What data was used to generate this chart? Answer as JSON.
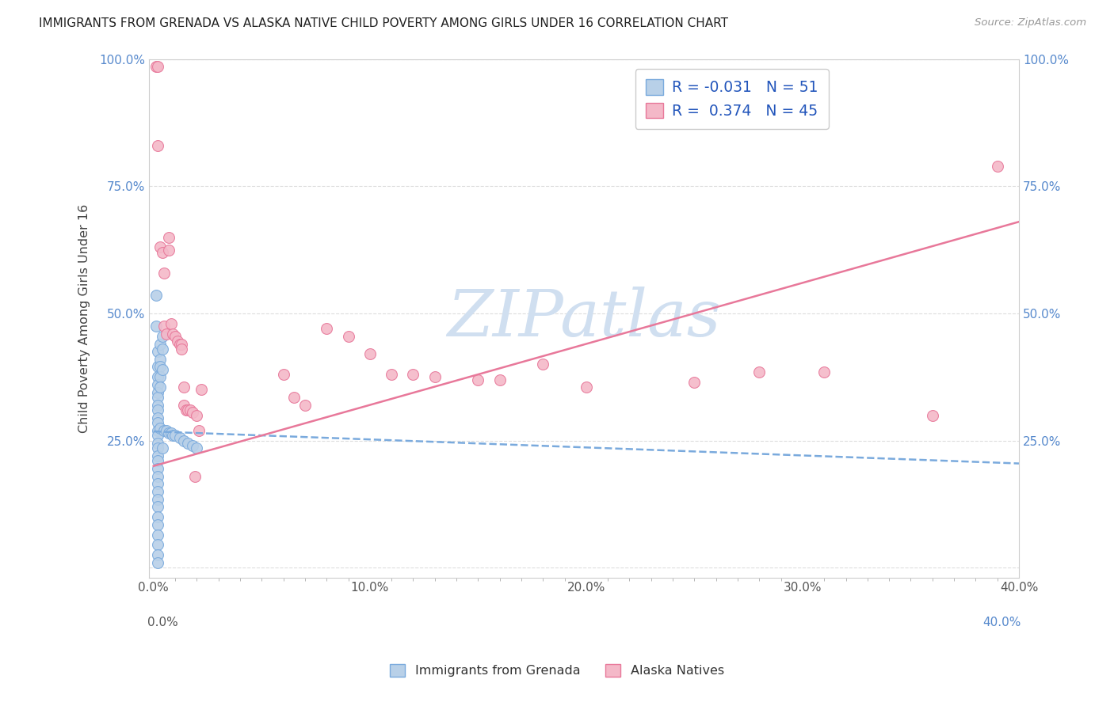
{
  "title": "IMMIGRANTS FROM GRENADA VS ALASKA NATIVE CHILD POVERTY AMONG GIRLS UNDER 16 CORRELATION CHART",
  "source": "Source: ZipAtlas.com",
  "ylabel": "Child Poverty Among Girls Under 16",
  "x_tick_labels": [
    "0.0%",
    "",
    "",
    "",
    "",
    "",
    "",
    "",
    "",
    "",
    "10.0%",
    "",
    "",
    "",
    "",
    "",
    "",
    "",
    "",
    "",
    "20.0%",
    "",
    "",
    "",
    "",
    "",
    "",
    "",
    "",
    "",
    "30.0%",
    "",
    "",
    "",
    "",
    "",
    "",
    "",
    "",
    "",
    "40.0%"
  ],
  "x_tick_values_major": [
    0.0,
    0.1,
    0.2,
    0.3,
    0.4
  ],
  "x_tick_labels_major": [
    "0.0%",
    "10.0%",
    "20.0%",
    "30.0%",
    "40.0%"
  ],
  "y_tick_values": [
    0.0,
    0.25,
    0.5,
    0.75,
    1.0
  ],
  "xlim": [
    -0.002,
    0.4
  ],
  "ylim": [
    -0.02,
    1.0
  ],
  "legend_R1": "-0.031",
  "legend_N1": "51",
  "legend_R2": "0.374",
  "legend_N2": "45",
  "series1_label": "Immigrants from Grenada",
  "series2_label": "Alaska Natives",
  "series1_color": "#b8d0e8",
  "series1_edge": "#7aaadd",
  "series2_color": "#f4b8c8",
  "series2_edge": "#e8789a",
  "trend1_color": "#7aaadd",
  "trend2_color": "#e8789a",
  "watermark": "ZIPatlas",
  "watermark_color": "#d0dff0",
  "blue_scatter": [
    [
      0.001,
      0.535
    ],
    [
      0.001,
      0.475
    ],
    [
      0.002,
      0.425
    ],
    [
      0.002,
      0.395
    ],
    [
      0.002,
      0.375
    ],
    [
      0.002,
      0.36
    ],
    [
      0.002,
      0.345
    ],
    [
      0.002,
      0.335
    ],
    [
      0.002,
      0.32
    ],
    [
      0.002,
      0.31
    ],
    [
      0.002,
      0.295
    ],
    [
      0.002,
      0.285
    ],
    [
      0.002,
      0.27
    ],
    [
      0.002,
      0.26
    ],
    [
      0.002,
      0.245
    ],
    [
      0.002,
      0.235
    ],
    [
      0.002,
      0.22
    ],
    [
      0.002,
      0.21
    ],
    [
      0.002,
      0.195
    ],
    [
      0.002,
      0.18
    ],
    [
      0.002,
      0.165
    ],
    [
      0.002,
      0.15
    ],
    [
      0.002,
      0.135
    ],
    [
      0.002,
      0.12
    ],
    [
      0.002,
      0.1
    ],
    [
      0.002,
      0.085
    ],
    [
      0.002,
      0.065
    ],
    [
      0.002,
      0.045
    ],
    [
      0.002,
      0.025
    ],
    [
      0.002,
      0.01
    ],
    [
      0.003,
      0.44
    ],
    [
      0.003,
      0.41
    ],
    [
      0.003,
      0.395
    ],
    [
      0.003,
      0.375
    ],
    [
      0.003,
      0.355
    ],
    [
      0.003,
      0.275
    ],
    [
      0.004,
      0.455
    ],
    [
      0.004,
      0.43
    ],
    [
      0.004,
      0.39
    ],
    [
      0.004,
      0.235
    ],
    [
      0.005,
      0.27
    ],
    [
      0.006,
      0.27
    ],
    [
      0.007,
      0.265
    ],
    [
      0.008,
      0.265
    ],
    [
      0.009,
      0.26
    ],
    [
      0.01,
      0.26
    ],
    [
      0.012,
      0.255
    ],
    [
      0.014,
      0.25
    ],
    [
      0.016,
      0.245
    ],
    [
      0.018,
      0.24
    ],
    [
      0.02,
      0.235
    ]
  ],
  "pink_scatter": [
    [
      0.001,
      0.985
    ],
    [
      0.002,
      0.985
    ],
    [
      0.002,
      0.83
    ],
    [
      0.003,
      0.63
    ],
    [
      0.004,
      0.62
    ],
    [
      0.005,
      0.58
    ],
    [
      0.005,
      0.475
    ],
    [
      0.006,
      0.46
    ],
    [
      0.007,
      0.65
    ],
    [
      0.007,
      0.625
    ],
    [
      0.008,
      0.48
    ],
    [
      0.009,
      0.46
    ],
    [
      0.01,
      0.455
    ],
    [
      0.011,
      0.445
    ],
    [
      0.012,
      0.44
    ],
    [
      0.013,
      0.44
    ],
    [
      0.013,
      0.43
    ],
    [
      0.014,
      0.355
    ],
    [
      0.014,
      0.32
    ],
    [
      0.015,
      0.31
    ],
    [
      0.016,
      0.31
    ],
    [
      0.017,
      0.31
    ],
    [
      0.018,
      0.305
    ],
    [
      0.019,
      0.18
    ],
    [
      0.02,
      0.3
    ],
    [
      0.021,
      0.27
    ],
    [
      0.022,
      0.35
    ],
    [
      0.06,
      0.38
    ],
    [
      0.065,
      0.335
    ],
    [
      0.07,
      0.32
    ],
    [
      0.08,
      0.47
    ],
    [
      0.09,
      0.455
    ],
    [
      0.1,
      0.42
    ],
    [
      0.11,
      0.38
    ],
    [
      0.12,
      0.38
    ],
    [
      0.13,
      0.375
    ],
    [
      0.15,
      0.37
    ],
    [
      0.16,
      0.37
    ],
    [
      0.18,
      0.4
    ],
    [
      0.2,
      0.355
    ],
    [
      0.25,
      0.365
    ],
    [
      0.28,
      0.385
    ],
    [
      0.31,
      0.385
    ],
    [
      0.36,
      0.3
    ],
    [
      0.39,
      0.79
    ]
  ],
  "trend1_x": [
    0.0,
    0.4
  ],
  "trend1_y": [
    0.268,
    0.205
  ],
  "trend2_x": [
    0.0,
    0.4
  ],
  "trend2_y": [
    0.2,
    0.68
  ]
}
